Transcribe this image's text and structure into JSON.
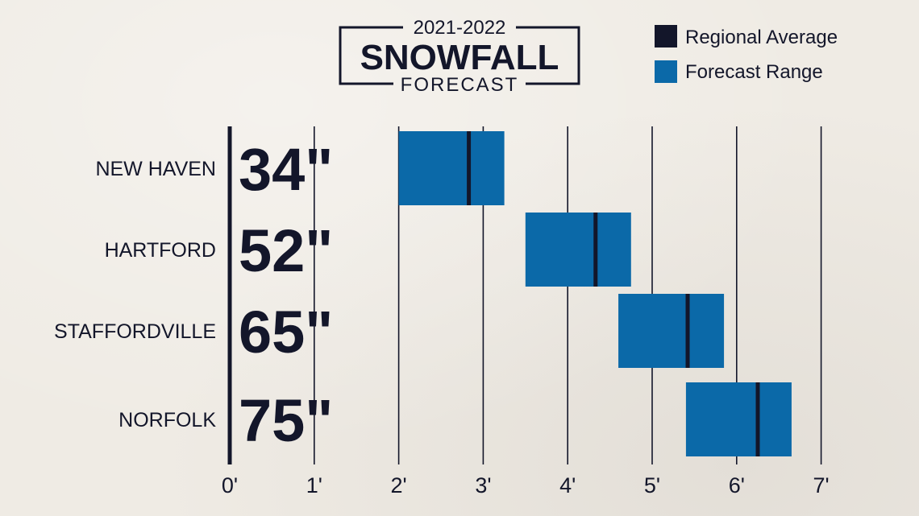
{
  "title": {
    "years": "2021-2022",
    "main": "SNOWFALL",
    "sub": "FORECAST"
  },
  "legend": {
    "placement": "top-right",
    "items": [
      {
        "label": "Regional Average",
        "color": "#13162a"
      },
      {
        "label": "Forecast Range",
        "color": "#0b69a8"
      }
    ]
  },
  "colors": {
    "range": "#0b69a8",
    "average": "#13162a",
    "text": "#13162a",
    "grid": "#13162a",
    "background": "#efebe4"
  },
  "chart_data": {
    "type": "bar",
    "orientation": "horizontal",
    "categories": [
      "NEW HAVEN",
      "HARTFORD",
      "STAFFORDVILLE",
      "NORFOLK"
    ],
    "average_labels": [
      "34\"",
      "52\"",
      "65\"",
      "75\""
    ],
    "series": [
      {
        "name": "Forecast Range",
        "low": [
          2.0,
          3.5,
          4.6,
          5.4
        ],
        "high": [
          3.25,
          4.75,
          5.85,
          6.65
        ]
      },
      {
        "name": "Regional Average",
        "values": [
          2.83,
          4.33,
          5.42,
          6.25
        ]
      }
    ],
    "x_ticks": [
      "0'",
      "1'",
      "2'",
      "3'",
      "4'",
      "5'",
      "6'",
      "7'"
    ],
    "xlim": [
      0,
      7
    ],
    "grid": true
  }
}
